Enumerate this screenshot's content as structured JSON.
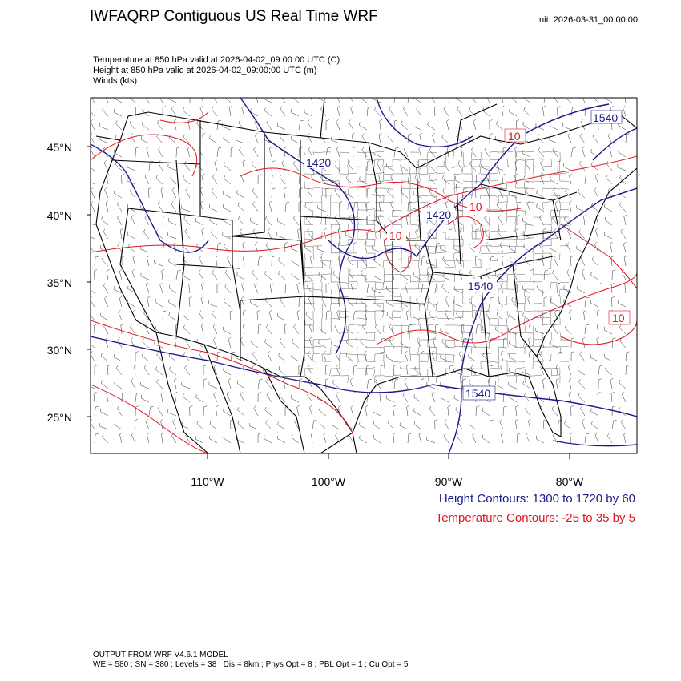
{
  "header": {
    "title": "IWFAQRP Contiguous US Real Time WRF",
    "init": "Init: 2026-03-31_00:00:00",
    "fields": [
      "Temperature at 850 hPa valid at 2026-04-02_09:00:00 UTC   (C)",
      "Height at 850 hPa valid at 2026-04-02_09:00:00 UTC   (m)",
      "Winds   (kts)"
    ]
  },
  "map": {
    "lat_labels": [
      "45°N",
      "40°N",
      "35°N",
      "30°N",
      "25°N"
    ],
    "lon_labels": [
      "110°W",
      "100°W",
      "90°W",
      "80°W"
    ],
    "height_labels": [
      "1420",
      "1420",
      "1540",
      "1540",
      "1540"
    ],
    "temp_labels": [
      "10",
      "10",
      "10",
      "10"
    ],
    "colors": {
      "height": "#1a1a8c",
      "temperature": "#e0141e",
      "border": "#000000"
    }
  },
  "legend": {
    "height": "Height Contours: 1300 to 1720 by 60",
    "temperature": "Temperature Contours: -25 to 35 by 5"
  },
  "footer": {
    "model": "OUTPUT FROM WRF V4.6.1 MODEL",
    "config": "WE = 580 ; SN = 380 ; Levels = 38 ; Dis = 8km ; Phys Opt = 8 ; PBL Opt = 1 ; Cu Opt = 5"
  }
}
